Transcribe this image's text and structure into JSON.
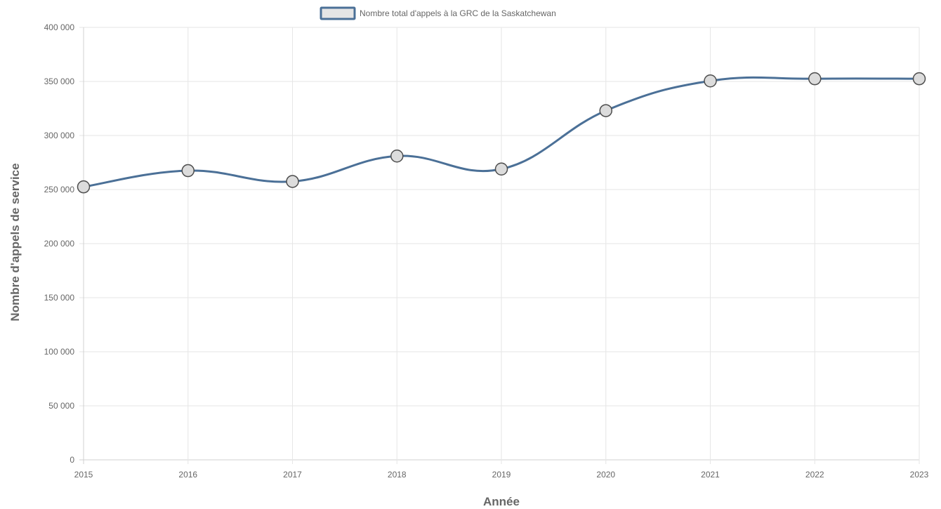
{
  "chart_data": {
    "type": "line",
    "title": "",
    "xlabel": "Année",
    "ylabel": "Nombre d'appels de service",
    "x": [
      "2015",
      "2016",
      "2017",
      "2018",
      "2019",
      "2020",
      "2021",
      "2022",
      "2023"
    ],
    "series": [
      {
        "name": "Nombre total d'appels à la GRC de la Saskatchewan",
        "values": [
          252500,
          267500,
          257500,
          281000,
          269000,
          323000,
          350500,
          352500,
          352500
        ]
      }
    ],
    "ylim": [
      0,
      400000
    ],
    "yticks": [
      "0",
      "50 000",
      "100 000",
      "150 000",
      "200 000",
      "250 000",
      "300 000",
      "350 000",
      "400 000"
    ],
    "ytick_values": [
      0,
      50000,
      100000,
      150000,
      200000,
      250000,
      300000,
      350000,
      400000
    ],
    "grid": true,
    "legend_position": "top-center",
    "colors": {
      "line": "#4b7097",
      "point_fill": "#dcdcdc",
      "point_stroke": "#4d4d4d",
      "legend_fill": "#e5e5e5",
      "legend_stroke": "#4b7097"
    }
  }
}
